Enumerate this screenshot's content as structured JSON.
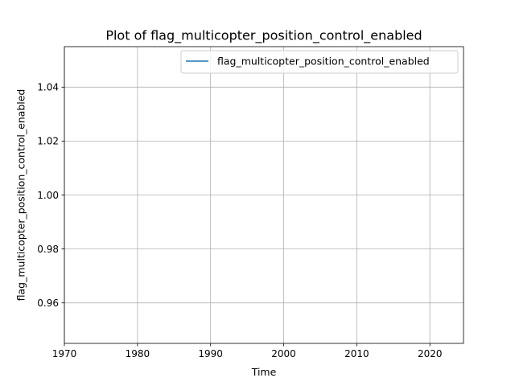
{
  "chart_data": {
    "type": "line",
    "title": "Plot of flag_multicopter_position_control_enabled",
    "xlabel": "Time",
    "ylabel": "flag_multicopter_position_control_enabled",
    "x_ticks": [
      "1970",
      "1980",
      "1990",
      "2000",
      "2010",
      "2020"
    ],
    "y_ticks": [
      "0.96",
      "0.98",
      "1.00",
      "1.02",
      "1.04"
    ],
    "xlim": [
      1970,
      2024.6
    ],
    "ylim": [
      0.945,
      1.055
    ],
    "grid": true,
    "legend_position": "top-right",
    "series": [
      {
        "name": "flag_multicopter_position_control_enabled",
        "color": "#1f77b4",
        "x": [
          2024.55,
          2024.6
        ],
        "y": [
          1.0,
          1.0
        ]
      }
    ]
  }
}
